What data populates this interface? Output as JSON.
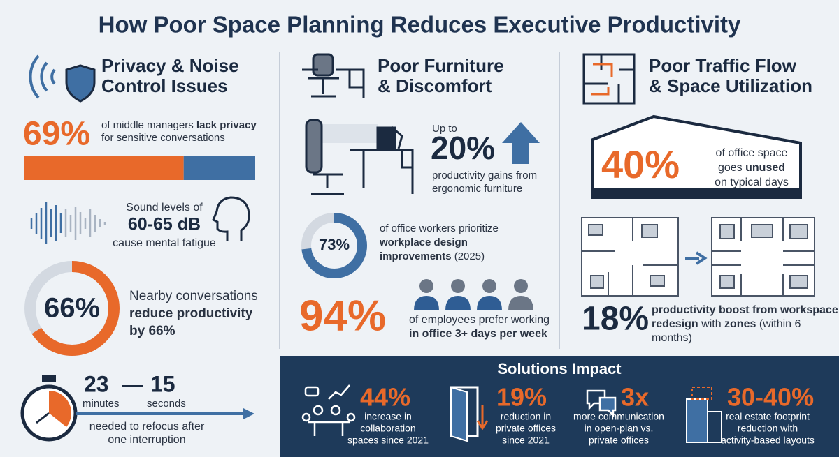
{
  "header": {
    "title": "How Poor Space Planning Reduces Executive Productivity"
  },
  "privacy": {
    "heading": [
      "Privacy & Noise",
      "Control Issues"
    ],
    "managers": {
      "value": 69,
      "label": "69%",
      "lines": [
        [
          "of middle managers ",
          "lack privacy"
        ],
        [
          "for sensitive conversations"
        ]
      ]
    },
    "sound": {
      "lines": [
        "Sound levels of",
        "60-65 dB",
        "cause mental fatigue"
      ]
    },
    "conversations": {
      "value": 66,
      "label": "66%",
      "lines": [
        "Nearby conversations",
        "reduce productivity",
        "by 66%"
      ]
    },
    "refocus": {
      "minutes": 23,
      "minutes_label": "minutes",
      "seconds": 15,
      "seconds_label": "seconds",
      "lines": [
        "needed to refocus after",
        "one interruption"
      ]
    }
  },
  "furniture": {
    "heading": [
      "Poor Furniture",
      "& Discomfort"
    ],
    "ergonomic": {
      "prefix": "Up to",
      "label": "20%",
      "lines": [
        "productivity gains from",
        "ergonomic furniture"
      ]
    },
    "design": {
      "value": 73,
      "label": "73%",
      "lines": [
        [
          "of office workers prioritize"
        ],
        [
          "workplace design"
        ],
        [
          "improvements",
          " (2025)"
        ]
      ]
    },
    "office": {
      "label": "94%",
      "lines": [
        "of employees prefer working",
        "in office 3+ days per week"
      ]
    }
  },
  "traffic": {
    "heading": [
      "Poor Traffic Flow",
      "& Space Utilization"
    ],
    "unused": {
      "label": "40%",
      "lines": [
        [
          "of office space"
        ],
        [
          "goes ",
          "unused"
        ],
        [
          "on typical days"
        ]
      ]
    },
    "redesign": {
      "label": "18%",
      "lines": [
        [
          "productivity boost from workspace"
        ],
        [
          "redesign",
          " with ",
          "zones",
          " (within 6"
        ],
        [
          "months)"
        ]
      ]
    }
  },
  "solutions": {
    "title": "Solutions Impact",
    "items": [
      {
        "label": "44%",
        "lines": [
          "increase in",
          "collaboration",
          "spaces since 2021"
        ]
      },
      {
        "label": "19%",
        "lines": [
          "reduction in",
          "private offices",
          "since 2021"
        ]
      },
      {
        "label": "3x",
        "lines": [
          "more communication",
          "in open-plan vs.",
          "private offices"
        ]
      },
      {
        "label": "30-40%",
        "lines": [
          "real estate footprint",
          "reduction with",
          "activity-based layouts"
        ]
      }
    ]
  }
}
